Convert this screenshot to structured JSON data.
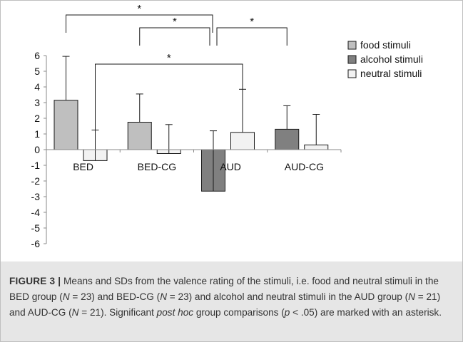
{
  "chart_data": {
    "type": "bar",
    "categories": [
      "BED",
      "BED-CG",
      "AUD",
      "AUD-CG"
    ],
    "ylim": [
      -6,
      6
    ],
    "yticks": [
      6,
      5,
      4,
      3,
      2,
      1,
      0,
      -1,
      -2,
      -3,
      -4,
      -5,
      -6
    ],
    "grid": false,
    "legend_position": "top-right",
    "series": [
      {
        "name": "food stimuli",
        "color": "#bfbfbf",
        "bars": [
          {
            "category": "BED",
            "value": 3.15,
            "sd": 2.8
          },
          {
            "category": "BED-CG",
            "value": 1.75,
            "sd": 1.8
          }
        ]
      },
      {
        "name": "alcohol stimuli",
        "color": "#808080",
        "bars": [
          {
            "category": "AUD",
            "value": -2.65,
            "sd": 3.85
          },
          {
            "category": "AUD-CG",
            "value": 1.3,
            "sd": 1.5
          }
        ]
      },
      {
        "name": "neutral stimuli",
        "color": "#f2f2f2",
        "bars": [
          {
            "category": "BED",
            "value": -0.7,
            "sd": 1.95
          },
          {
            "category": "BED-CG",
            "value": -0.25,
            "sd": 1.85
          },
          {
            "category": "AUD",
            "value": 1.1,
            "sd": 2.75
          },
          {
            "category": "AUD-CG",
            "value": 0.3,
            "sd": 1.95
          }
        ]
      }
    ],
    "comparisons": [
      {
        "from": "BED food stimuli",
        "to": "AUD alcohol stimuli",
        "label": "*"
      },
      {
        "from": "BED-CG food stimuli",
        "to": "AUD alcohol stimuli",
        "label": "*"
      },
      {
        "from": "AUD alcohol stimuli",
        "to": "AUD-CG alcohol stimuli",
        "label": "*"
      },
      {
        "from": "BED neutral stimuli",
        "to": "AUD neutral stimuli",
        "label": "*"
      }
    ]
  },
  "caption": {
    "lead": "FIGURE 3 |",
    "parts": [
      {
        "t": " Means and SDs from the valence rating of the stimuli, i.e. food and neutral stimuli in the BED group ("
      },
      {
        "t": "N",
        "i": true
      },
      {
        "t": " = 23) and BED-CG ("
      },
      {
        "t": "N",
        "i": true
      },
      {
        "t": " = 23) and alcohol and neutral stimuli in the AUD group ("
      },
      {
        "t": "N",
        "i": true
      },
      {
        "t": " = 21) and AUD-CG ("
      },
      {
        "t": "N",
        "i": true
      },
      {
        "t": " = 21). Significant "
      },
      {
        "t": "post hoc",
        "i": true
      },
      {
        "t": " group comparisons ("
      },
      {
        "t": "p",
        "i": true
      },
      {
        "t": " < .05) are marked with an asterisk."
      }
    ]
  }
}
